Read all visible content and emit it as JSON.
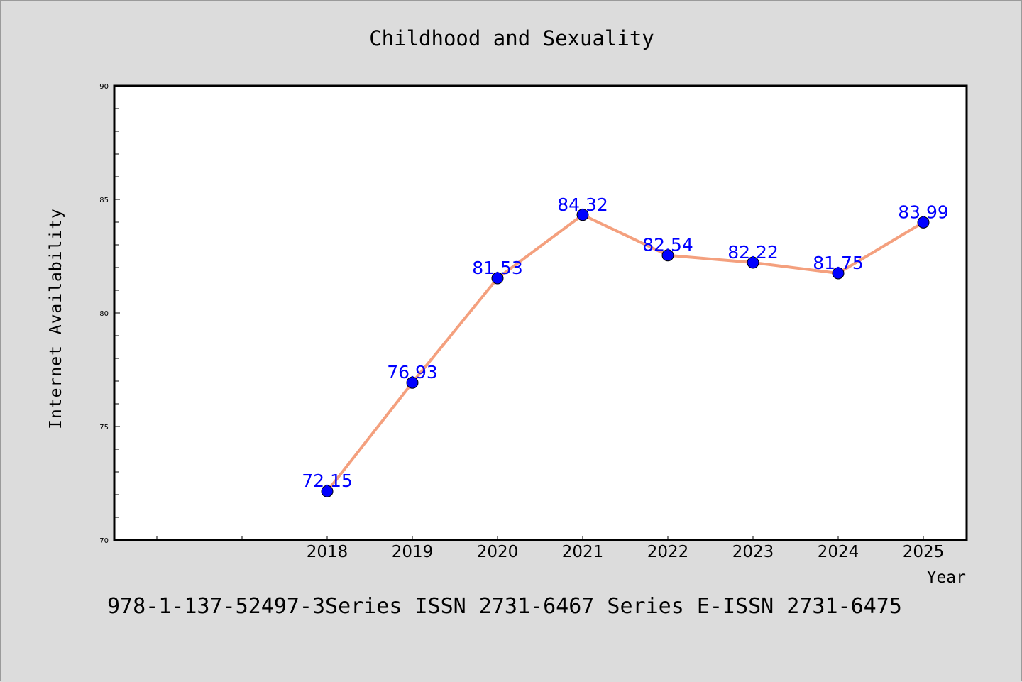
{
  "chart_data": {
    "type": "line",
    "title": "Childhood and Sexuality",
    "xlabel": "Year",
    "ylabel": "Internet Availability",
    "categories": [
      "2018",
      "2019",
      "2020",
      "2021",
      "2022",
      "2023",
      "2024",
      "2025"
    ],
    "series": [
      {
        "values": [
          72.15,
          76.93,
          81.53,
          84.32,
          82.54,
          82.22,
          81.75,
          83.99
        ],
        "labels": [
          "72.15",
          "76.93",
          "81.53",
          "84.32",
          "82.54",
          "82.22",
          "81.75",
          "83.99"
        ],
        "line_color": "#f4a07e",
        "marker_color": "#0000ff",
        "label_color": "#0000ff"
      }
    ],
    "ylim": [
      70,
      90
    ],
    "yticks": [
      "70",
      "75",
      "80",
      "85",
      "90"
    ],
    "grid": false,
    "legend": "none"
  },
  "footer": "978-1-137-52497-3Series ISSN 2731-6467 Series E-ISSN 2731-6475",
  "colors": {
    "background": "#dcdcdc",
    "plot_background": "#ffffff"
  }
}
